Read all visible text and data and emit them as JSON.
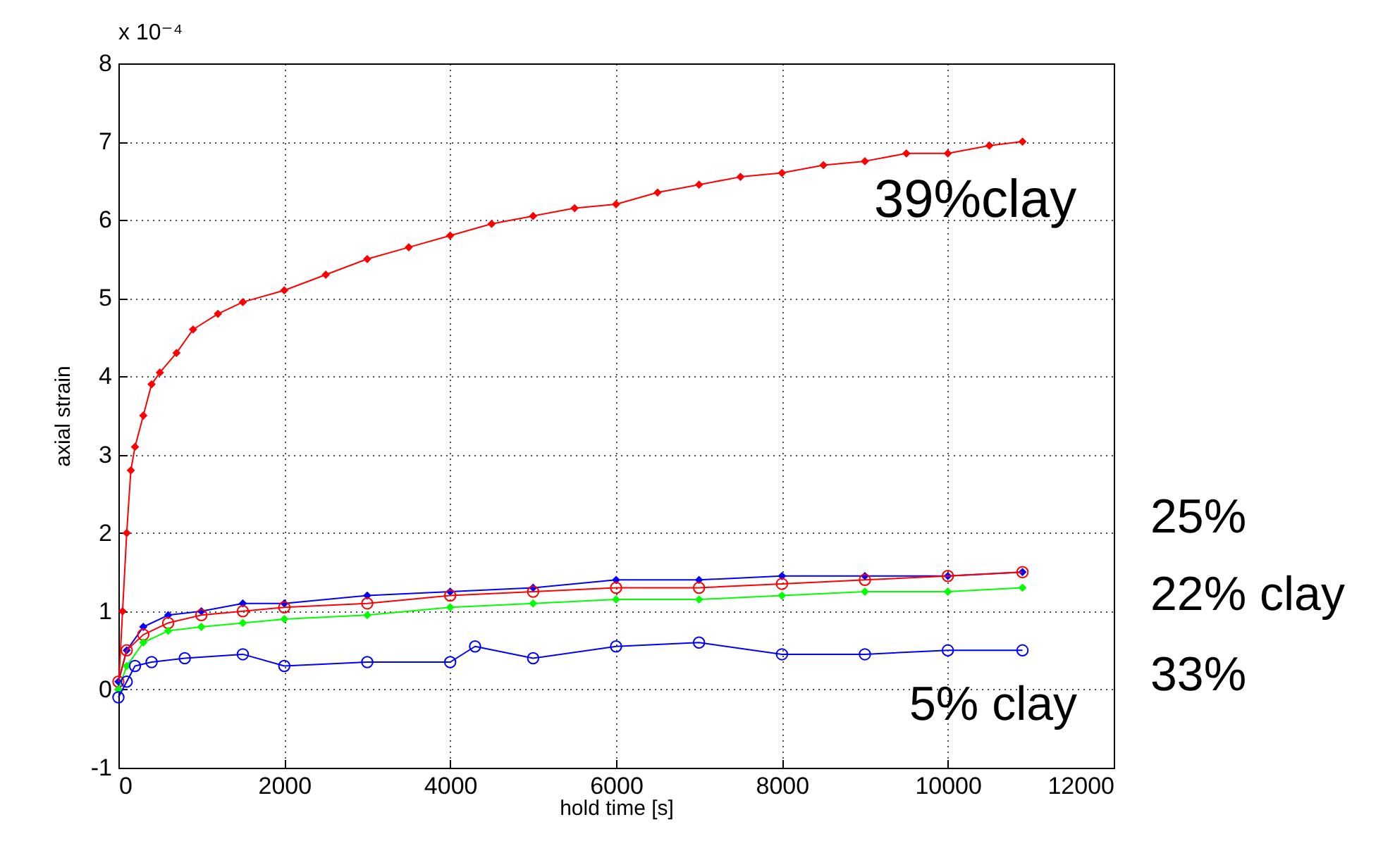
{
  "chart_data": {
    "type": "line",
    "xlabel": "hold time [s]",
    "ylabel": "axial strain",
    "xlim": [
      0,
      12000
    ],
    "xticks": [
      0,
      2000,
      4000,
      6000,
      8000,
      10000,
      12000
    ],
    "ylim": [
      -1,
      8
    ],
    "yticks": [
      -1,
      0,
      1,
      2,
      3,
      4,
      5,
      6,
      7,
      8
    ],
    "grid": true,
    "line_style": "solid",
    "annotations": [
      "x 10⁻⁴",
      "39%clay",
      "25%",
      "22% clay",
      "33%",
      "5% clay"
    ],
    "series": [
      {
        "color": "#ff0000",
        "marker": "diamond",
        "x": [
          0,
          50,
          100,
          150,
          200,
          300,
          400,
          500,
          700,
          900,
          1200,
          1500,
          2000,
          2500,
          3000,
          3500,
          4000,
          4500,
          5000,
          5500,
          6000,
          6500,
          7000,
          7500,
          8000,
          8500,
          9000,
          9500,
          10000,
          10500,
          10900
        ],
        "values": [
          0,
          1.0,
          2.0,
          2.8,
          3.1,
          3.5,
          3.9,
          4.05,
          4.3,
          4.6,
          4.8,
          4.95,
          5.1,
          5.3,
          5.5,
          5.65,
          5.8,
          5.95,
          6.05,
          6.15,
          6.2,
          6.35,
          6.45,
          6.55,
          6.6,
          6.7,
          6.75,
          6.85,
          6.85,
          6.95,
          7.0
        ]
      },
      {
        "color": "#0000ff",
        "marker": "diamond",
        "x": [
          0,
          100,
          300,
          600,
          1000,
          1500,
          2000,
          3000,
          4000,
          5000,
          6000,
          7000,
          8000,
          9000,
          10000,
          10900
        ],
        "values": [
          0.1,
          0.5,
          0.8,
          0.95,
          1.0,
          1.1,
          1.1,
          1.2,
          1.25,
          1.3,
          1.4,
          1.4,
          1.45,
          1.45,
          1.45,
          1.5
        ]
      },
      {
        "color": "#ff0000",
        "marker": "circle",
        "x": [
          0,
          100,
          300,
          600,
          1000,
          1500,
          2000,
          3000,
          4000,
          5000,
          6000,
          7000,
          8000,
          9000,
          10000,
          10900
        ],
        "values": [
          0.1,
          0.5,
          0.7,
          0.85,
          0.95,
          1.0,
          1.05,
          1.1,
          1.2,
          1.25,
          1.3,
          1.3,
          1.35,
          1.4,
          1.45,
          1.5
        ]
      },
      {
        "color": "#00ff00",
        "marker": "diamond",
        "x": [
          0,
          100,
          300,
          600,
          1000,
          1500,
          2000,
          3000,
          4000,
          5000,
          6000,
          7000,
          8000,
          9000,
          10000,
          10900
        ],
        "values": [
          0,
          0.3,
          0.6,
          0.75,
          0.8,
          0.85,
          0.9,
          0.95,
          1.05,
          1.1,
          1.15,
          1.15,
          1.2,
          1.25,
          1.25,
          1.3
        ]
      },
      {
        "color": "#0000ff",
        "marker": "circle",
        "x": [
          0,
          100,
          200,
          400,
          800,
          1500,
          2000,
          3000,
          4000,
          4300,
          5000,
          6000,
          7000,
          8000,
          9000,
          10000,
          10900
        ],
        "values": [
          -0.1,
          0.1,
          0.3,
          0.35,
          0.4,
          0.45,
          0.3,
          0.35,
          0.35,
          0.55,
          0.4,
          0.55,
          0.6,
          0.45,
          0.45,
          0.5,
          0.5
        ]
      }
    ]
  }
}
